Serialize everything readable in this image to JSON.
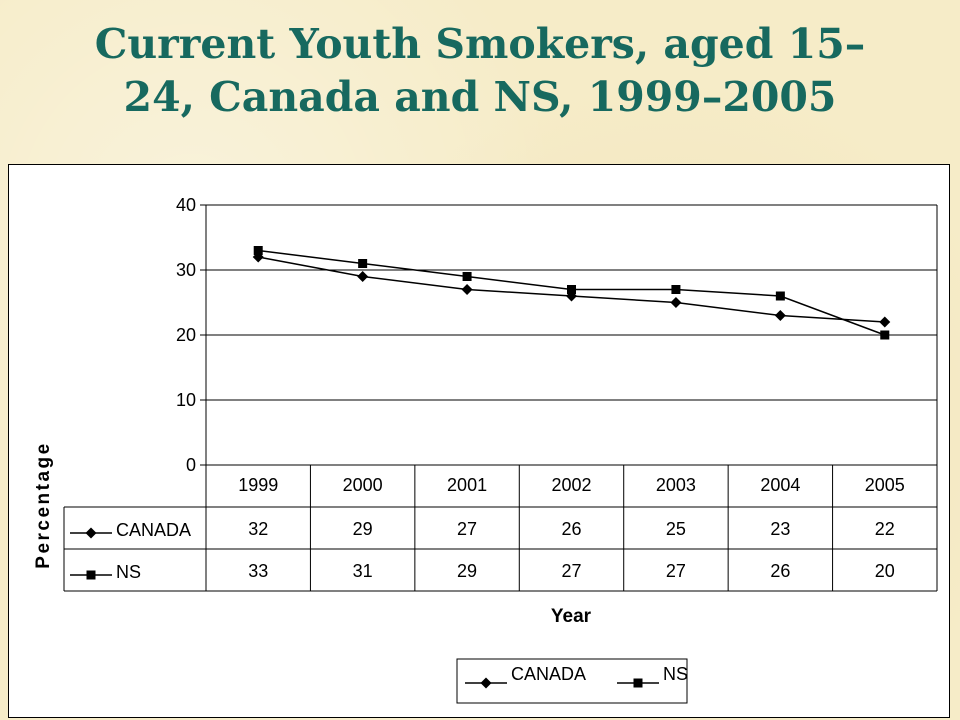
{
  "slide": {
    "title_line1": "Current Youth Smokers, aged 15–",
    "title_line2": "24, Canada and NS, 1999–2005"
  },
  "colors": {
    "title": "#17695f",
    "background": "#f6ecc8",
    "series_line": "#000000"
  },
  "chart_data": {
    "type": "line",
    "xlabel": "Year",
    "ylabel": "Percentage",
    "ylim": [
      0,
      40
    ],
    "yticks": [
      0,
      10,
      20,
      30,
      40
    ],
    "grid": true,
    "legend_position": "bottom",
    "categories": [
      "1999",
      "2000",
      "2001",
      "2002",
      "2003",
      "2004",
      "2005"
    ],
    "series": [
      {
        "name": "CANADA",
        "marker": "diamond",
        "values": [
          32,
          29,
          27,
          26,
          25,
          23,
          22
        ]
      },
      {
        "name": "NS",
        "marker": "square",
        "values": [
          33,
          31,
          29,
          27,
          27,
          26,
          20
        ]
      }
    ],
    "data_table": true
  }
}
